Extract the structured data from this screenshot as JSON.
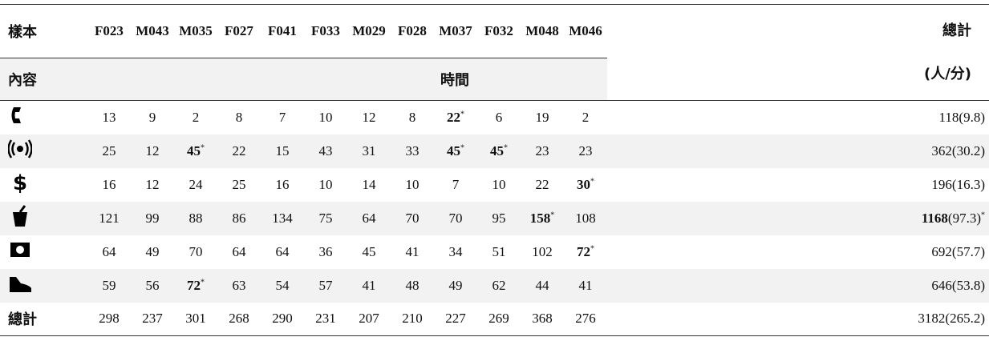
{
  "table": {
    "header": {
      "corner": "樣本",
      "samples": [
        "F023",
        "M043",
        "M035",
        "F027",
        "F041",
        "F033",
        "M029",
        "F028",
        "M037",
        "F032",
        "M048",
        "M046"
      ],
      "total": "總計",
      "unit": "(人/分)"
    },
    "subheader": {
      "corner": "內容",
      "span": "時間"
    },
    "rows": [
      [
        13,
        9,
        2,
        8,
        7,
        10,
        12,
        8,
        {
          "bold": "22",
          "note": "*"
        },
        6,
        19,
        2,
        "118(9.8)"
      ],
      [
        25,
        12,
        {
          "bold": "45",
          "note": "*"
        },
        22,
        15,
        43,
        31,
        33,
        {
          "bold": "45",
          "note": "*"
        },
        {
          "bold": "45",
          "note": "*"
        },
        23,
        23,
        "362(30.2)"
      ],
      [
        16,
        12,
        24,
        25,
        16,
        10,
        14,
        10,
        7,
        10,
        22,
        {
          "bold": "30",
          "note": "*"
        },
        "196(16.3)"
      ],
      [
        121,
        99,
        88,
        86,
        134,
        75,
        64,
        70,
        70,
        95,
        {
          "bold": "158",
          "note": "*"
        },
        108,
        {
          "bold": "1168",
          "rest": "(97.3)",
          "note": "*"
        }
      ],
      [
        64,
        49,
        70,
        64,
        64,
        36,
        45,
        41,
        34,
        51,
        102,
        {
          "bold": "72",
          "note": "*"
        },
        "692(57.7)"
      ],
      [
        59,
        56,
        {
          "bold": "72",
          "note": "*"
        },
        63,
        54,
        57,
        41,
        48,
        49,
        62,
        44,
        41,
        "646(53.8)"
      ]
    ],
    "totals": {
      "label": "總計",
      "values": [
        298,
        237,
        301,
        268,
        290,
        231,
        207,
        210,
        227,
        269,
        368,
        276,
        "3182(265.2)"
      ]
    }
  }
}
